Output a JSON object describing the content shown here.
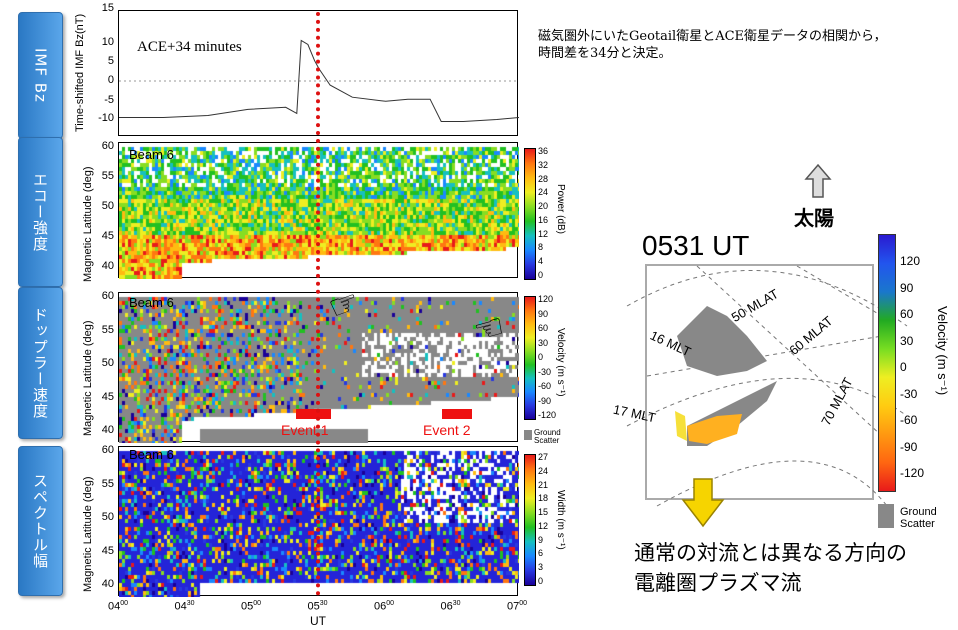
{
  "side_tabs": [
    "IMF Bz",
    "エコー強度",
    "ドップラー速度",
    "スペクトル幅"
  ],
  "imf_panel": {
    "ylabel": "Time-shifted IMF Bz(nT)",
    "annotation": "ACE+34 minutes",
    "yticks": [
      "15",
      "10",
      "5",
      "0",
      "-5",
      "-10"
    ]
  },
  "beam_label": "Beam 6",
  "lat_ylabel": "Magnetic Latitude (deg)",
  "lat_ticks": [
    "60",
    "55",
    "50",
    "45",
    "40"
  ],
  "power_colorbar": {
    "label": "Power (dB)",
    "ticks": [
      "36",
      "32",
      "28",
      "24",
      "20",
      "16",
      "12",
      "8",
      "4",
      "0"
    ]
  },
  "velocity_colorbar": {
    "label": "Velocity (m s⁻¹)",
    "ticks": [
      "120",
      "90",
      "60",
      "30",
      "0",
      "-30",
      "-60",
      "-90",
      "-120"
    ],
    "ground_label": "Ground Scatter"
  },
  "width_colorbar": {
    "label": "Width (m s⁻¹)",
    "ticks": [
      "27",
      "24",
      "21",
      "18",
      "15",
      "12",
      "9",
      "6",
      "3",
      "0"
    ]
  },
  "events": [
    "Event 1",
    "Event 2"
  ],
  "x_axis": {
    "label": "UT",
    "ticks": [
      {
        "h": "04",
        "m": "00"
      },
      {
        "h": "04",
        "m": "30"
      },
      {
        "h": "05",
        "m": "00"
      },
      {
        "h": "05",
        "m": "30"
      },
      {
        "h": "06",
        "m": "00"
      },
      {
        "h": "06",
        "m": "30"
      },
      {
        "h": "07",
        "m": "00"
      }
    ]
  },
  "note": [
    "磁気圏外にいたGeotail衛星とACE衛星データの相関から，",
    "時間差を34分と決定。"
  ],
  "sun_label": "太陽",
  "map": {
    "title": "0531 UT",
    "mlat_labels": [
      "50 MLAT",
      "60 MLAT",
      "70 MLAT"
    ],
    "mlt_labels": [
      "16 MLT",
      "17 MLT"
    ],
    "colorbar_label": "Velocity (m s⁻¹)",
    "colorbar_ticks": [
      "120",
      "90",
      "60",
      "30",
      "0",
      "-30",
      "-60",
      "-90",
      "-120"
    ],
    "ground_label": "Ground Scatter"
  },
  "conclusion": [
    "通常の対流とは異なる方向の",
    "電離圏プラズマ流"
  ],
  "colors": {
    "tab": "#3a8ad8",
    "event": "#ee1111",
    "marker_line": "#dd1111",
    "ground": "#888888"
  },
  "chart_data": {
    "type": "line",
    "title": "",
    "xlabel": "UT",
    "ylabel": "Time-shifted IMF Bz(nT)",
    "ylim": [
      -15,
      15
    ],
    "x": [
      "04:00",
      "04:20",
      "04:40",
      "04:58",
      "05:15",
      "05:20",
      "05:22",
      "05:25",
      "05:28",
      "05:30",
      "05:35",
      "05:45",
      "06:00",
      "06:10",
      "06:20",
      "06:25",
      "06:35",
      "06:50",
      "07:00"
    ],
    "series": [
      {
        "values": [
          -9,
          -9,
          -8.5,
          -7,
          -6.5,
          -8,
          10,
          9,
          5,
          3,
          -1,
          -4,
          -5,
          -4.5,
          -4.5,
          -10,
          -10,
          -9.5,
          -9
        ]
      }
    ],
    "vertical_marker_ut": "05:31",
    "events": [
      {
        "label": "Event 1",
        "start": "05:25",
        "end": "05:38"
      },
      {
        "label": "Event 2",
        "start": "06:20",
        "end": "06:32"
      }
    ]
  }
}
